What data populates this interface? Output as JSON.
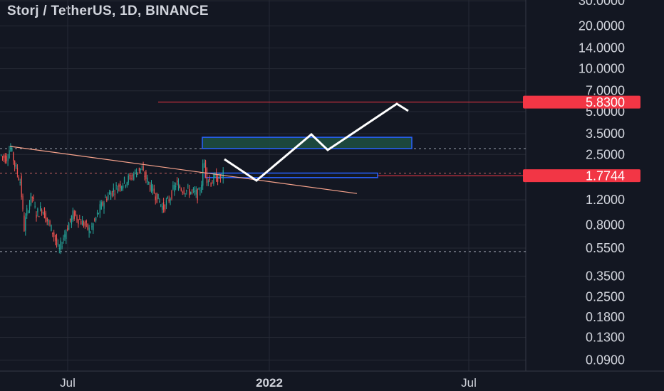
{
  "header": {
    "title": "Storj / TetherUS, 1D, BINANCE"
  },
  "colors": {
    "background": "#131722",
    "grid": "#262a35",
    "axis_text": "#d1d4dc",
    "up_candle": "#26a69a",
    "down_candle": "#ef5350",
    "price_label_bg": "#f23645",
    "trendline": "#f7a38c",
    "zone_border": "#2962ff",
    "zone_fill": "#1e4d40",
    "projection": "#ffffff"
  },
  "chart_data": {
    "type": "candlestick",
    "title": "Storj / TetherUS, 1D, BINANCE",
    "y_scale": "log",
    "y_ticks": [
      "30.0000",
      "20.0000",
      "14.0000",
      "10.0000",
      "7.0000",
      "5.0000",
      "3.5000",
      "2.5000",
      "1.2000",
      "0.8000",
      "0.5500",
      "0.3500",
      "0.2500",
      "0.1800",
      "0.1300",
      "0.0900"
    ],
    "x_ticks": [
      "Jul",
      "2022",
      "Jul"
    ],
    "price_labels": [
      {
        "value": "5.8300",
        "price": 5.83
      },
      {
        "value": "1.7744",
        "price": 1.7744
      }
    ],
    "horizontal_levels": [
      2.75,
      1.85,
      0.52
    ],
    "target_line": 5.83,
    "current_price": 1.7744,
    "approx_range": {
      "start_price": 2.5,
      "low": 0.48,
      "high": 2.9,
      "end_price": 1.77
    }
  }
}
